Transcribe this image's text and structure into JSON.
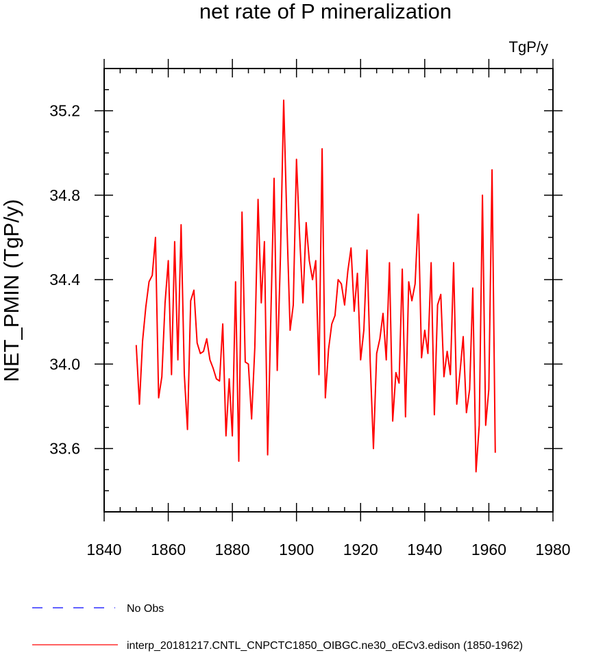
{
  "chart_data": {
    "type": "line",
    "title": "net rate of P mineralization",
    "units": "TgP/y",
    "ylabel": "NET_PMIN  (TgP/y)",
    "xlabel": "",
    "xlim": [
      1840,
      1980
    ],
    "ylim": [
      33.3,
      35.4
    ],
    "x_ticks": [
      1840,
      1860,
      1880,
      1900,
      1920,
      1940,
      1960,
      1980
    ],
    "x_tick_labels": [
      "1840",
      "1860",
      "1880",
      "1900",
      "1920",
      "1940",
      "1960",
      "1980"
    ],
    "y_ticks": [
      33.6,
      34.0,
      34.4,
      34.8,
      35.2
    ],
    "y_tick_labels": [
      "33.6",
      "34.0",
      "34.4",
      "34.8",
      "35.2"
    ],
    "grid": false,
    "series": [
      {
        "name": "interp_20181217.CNTL_CNPCTC1850_OIBGC.ne30_oECv3.edison (1850-1962)",
        "color": "#ff0000",
        "style": "solid",
        "x": [
          1850,
          1851,
          1852,
          1853,
          1854,
          1855,
          1856,
          1857,
          1858,
          1859,
          1860,
          1861,
          1862,
          1863,
          1864,
          1865,
          1866,
          1867,
          1868,
          1869,
          1870,
          1871,
          1872,
          1873,
          1874,
          1875,
          1876,
          1877,
          1878,
          1879,
          1880,
          1881,
          1882,
          1883,
          1884,
          1885,
          1886,
          1887,
          1888,
          1889,
          1890,
          1891,
          1892,
          1893,
          1894,
          1895,
          1896,
          1897,
          1898,
          1899,
          1900,
          1901,
          1902,
          1903,
          1904,
          1905,
          1906,
          1907,
          1908,
          1909,
          1910,
          1911,
          1912,
          1913,
          1914,
          1915,
          1916,
          1917,
          1918,
          1919,
          1920,
          1921,
          1922,
          1923,
          1924,
          1925,
          1926,
          1927,
          1928,
          1929,
          1930,
          1931,
          1932,
          1933,
          1934,
          1935,
          1936,
          1937,
          1938,
          1939,
          1940,
          1941,
          1942,
          1943,
          1944,
          1945,
          1946,
          1947,
          1948,
          1949,
          1950,
          1951,
          1952,
          1953,
          1954,
          1955,
          1956,
          1957,
          1958,
          1959,
          1960,
          1961,
          1962
        ],
        "values": [
          34.09,
          33.81,
          34.11,
          34.27,
          34.39,
          34.42,
          34.6,
          33.84,
          33.94,
          34.29,
          34.49,
          33.95,
          34.58,
          34.02,
          34.66,
          33.95,
          33.69,
          34.3,
          34.35,
          34.1,
          34.05,
          34.06,
          34.12,
          34.02,
          33.98,
          33.93,
          33.92,
          34.19,
          33.66,
          33.93,
          33.66,
          34.39,
          33.54,
          34.72,
          34.01,
          34.0,
          33.74,
          34.08,
          34.78,
          34.29,
          34.58,
          33.57,
          34.23,
          34.88,
          33.97,
          34.51,
          35.25,
          34.67,
          34.16,
          34.28,
          34.97,
          34.6,
          34.29,
          34.67,
          34.49,
          34.4,
          34.49,
          33.95,
          35.02,
          33.84,
          34.07,
          34.19,
          34.23,
          34.4,
          34.38,
          34.28,
          34.44,
          34.55,
          34.25,
          34.43,
          34.02,
          34.16,
          34.54,
          34.01,
          33.6,
          34.05,
          34.12,
          34.24,
          34.02,
          34.48,
          33.73,
          33.96,
          33.91,
          34.45,
          33.75,
          34.39,
          34.3,
          34.38,
          34.71,
          34.03,
          34.16,
          34.05,
          34.48,
          33.76,
          34.28,
          34.33,
          33.94,
          34.06,
          33.95,
          34.48,
          33.81,
          33.96,
          34.13,
          33.77,
          33.88,
          34.36,
          33.49,
          33.71,
          34.8,
          33.71,
          33.88,
          34.92,
          33.58
        ]
      }
    ]
  },
  "legend": [
    {
      "label": "No Obs",
      "color": "#0000ff",
      "style": "dashed"
    },
    {
      "label": "interp_20181217.CNTL_CNPCTC1850_OIBGC.ne30_oECv3.edison (1850-1962)",
      "color": "#ff0000",
      "style": "solid"
    }
  ]
}
